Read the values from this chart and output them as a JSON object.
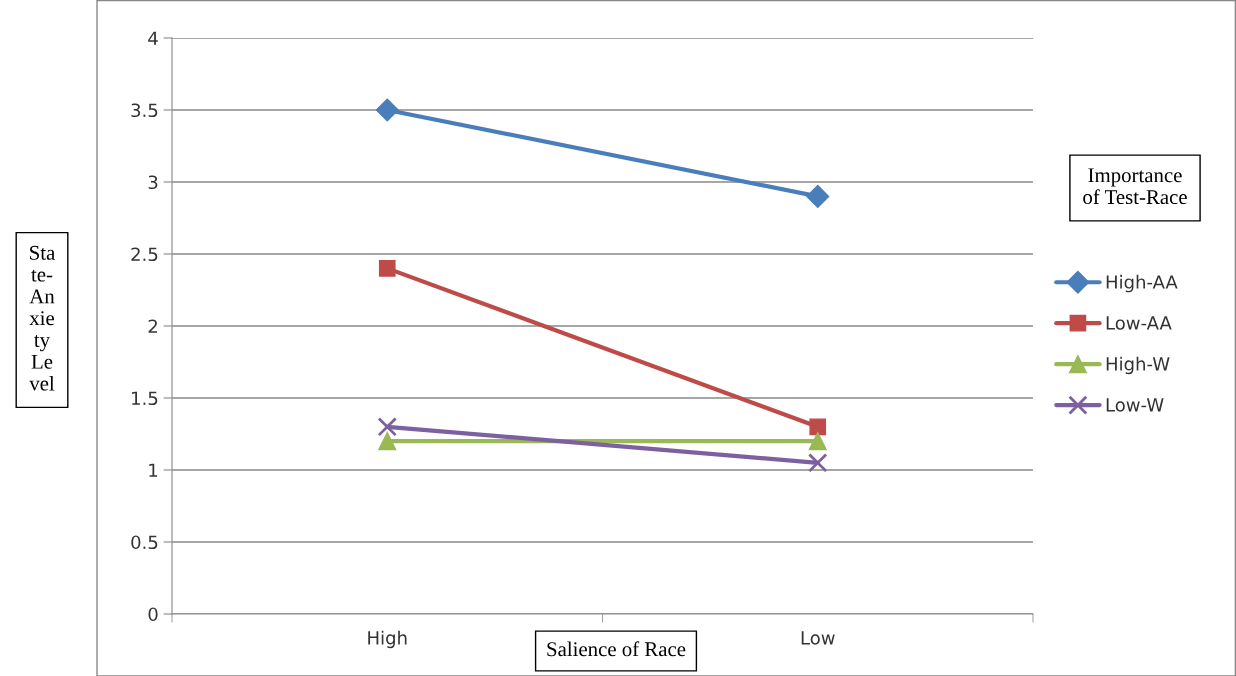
{
  "chart_data": {
    "type": "line",
    "xlabel": "Salience of Race",
    "ylabel": "Sta\nte-\nAn\nxie\nty\nLe\nvel",
    "legend_title": "Importance\nof Test-Race",
    "categories": [
      "High",
      "Low"
    ],
    "series": [
      {
        "name": "High-AA",
        "color": "#4a7ebb",
        "values": [
          3.5,
          2.9
        ],
        "marker": "diamond"
      },
      {
        "name": "Low-AA",
        "color": "#be4b48",
        "values": [
          2.4,
          1.3
        ],
        "marker": "square"
      },
      {
        "name": "High-W",
        "color": "#98b954",
        "values": [
          1.2,
          1.2
        ],
        "marker": "triangle"
      },
      {
        "name": "Low-W",
        "color": "#7d60a0",
        "values": [
          1.3,
          1.05
        ],
        "marker": "cross"
      }
    ],
    "ylim": [
      0,
      4
    ],
    "yticks": [
      0,
      0.5,
      1,
      1.5,
      2,
      2.5,
      3,
      3.5,
      4
    ],
    "grid": "y",
    "legend": "right",
    "line_style": "solid"
  }
}
